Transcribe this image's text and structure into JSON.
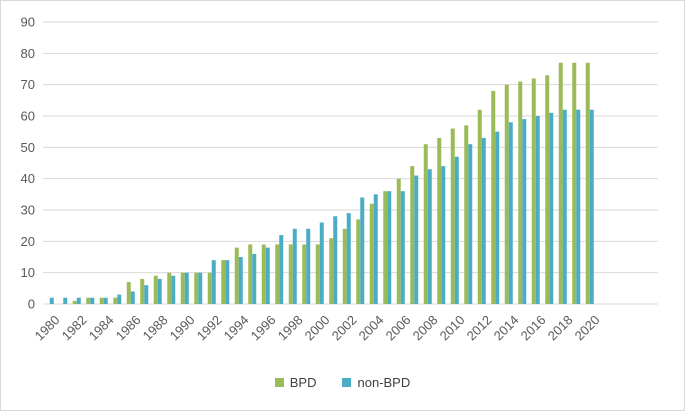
{
  "chart_data": {
    "type": "bar",
    "categories": [
      "1980",
      "1981",
      "1982",
      "1983",
      "1984",
      "1985",
      "1986",
      "1987",
      "1988",
      "1989",
      "1990",
      "1991",
      "1992",
      "1993",
      "1994",
      "1995",
      "1996",
      "1997",
      "1998",
      "1999",
      "2000",
      "2001",
      "2002",
      "2003",
      "2004",
      "2005",
      "2006",
      "2007",
      "2008",
      "2009",
      "2010",
      "2011",
      "2012",
      "2013",
      "2014",
      "2015",
      "2016",
      "2017",
      "2018",
      "2019",
      "2020"
    ],
    "x_tick_labels": [
      "1980",
      "1982",
      "1984",
      "1986",
      "1988",
      "1990",
      "1992",
      "1994",
      "1996",
      "1998",
      "2000",
      "2002",
      "2004",
      "2006",
      "2008",
      "2010",
      "2012",
      "2014",
      "2016",
      "2018",
      "2020"
    ],
    "series": [
      {
        "name": "BPD",
        "color": "#9bbb59",
        "values": [
          0,
          0,
          1,
          2,
          2,
          2,
          7,
          8,
          9,
          10,
          10,
          10,
          10,
          14,
          18,
          19,
          19,
          19,
          19,
          19,
          19,
          21,
          24,
          27,
          32,
          36,
          40,
          44,
          51,
          53,
          56,
          57,
          62,
          68,
          70,
          71,
          72,
          73,
          77,
          77,
          77
        ]
      },
      {
        "name": "non-BPD",
        "color": "#4bacc6",
        "values": [
          2,
          2,
          2,
          2,
          2,
          3,
          4,
          6,
          8,
          9,
          10,
          10,
          14,
          14,
          15,
          16,
          18,
          22,
          24,
          24,
          26,
          28,
          29,
          34,
          35,
          36,
          36,
          41,
          43,
          44,
          47,
          51,
          53,
          55,
          58,
          59,
          60,
          61,
          62,
          62,
          62
        ]
      }
    ],
    "ylim": [
      0,
      90
    ],
    "yticks": [
      "0",
      "10",
      "20",
      "30",
      "40",
      "50",
      "60",
      "70",
      "80",
      "90"
    ],
    "grid": true,
    "legend_position": "bottom",
    "title": "",
    "xlabel": "",
    "ylabel": ""
  }
}
